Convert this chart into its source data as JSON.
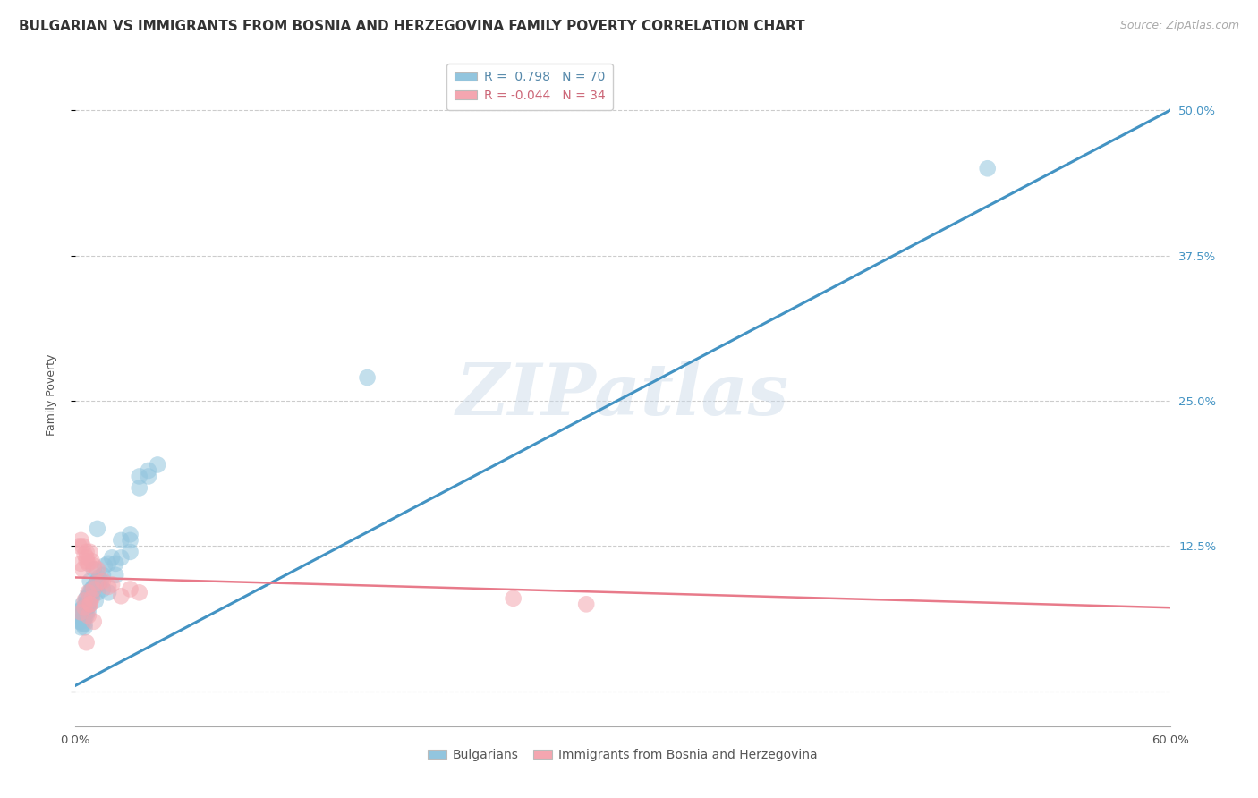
{
  "title": "BULGARIAN VS IMMIGRANTS FROM BOSNIA AND HERZEGOVINA FAMILY POVERTY CORRELATION CHART",
  "source": "Source: ZipAtlas.com",
  "ylabel": "Family Poverty",
  "xlim": [
    0.0,
    0.6
  ],
  "ylim": [
    -0.03,
    0.54
  ],
  "xticks": [
    0.0,
    0.1,
    0.2,
    0.3,
    0.4,
    0.5,
    0.6
  ],
  "xticklabels": [
    "0.0%",
    "",
    "",
    "",
    "",
    "",
    "60.0%"
  ],
  "yticks": [
    0.0,
    0.125,
    0.25,
    0.375,
    0.5
  ],
  "yticklabels": [
    "",
    "12.5%",
    "25.0%",
    "37.5%",
    "50.0%"
  ],
  "grid_color": "#cccccc",
  "background_color": "#ffffff",
  "watermark": "ZIPatlas",
  "blue_color": "#92c5de",
  "pink_color": "#f4a6b0",
  "blue_line_color": "#4393c3",
  "pink_line_color": "#e87a8a",
  "R_blue": 0.798,
  "N_blue": 70,
  "R_pink": -0.044,
  "N_pink": 34,
  "blue_scatter_x": [
    0.002,
    0.003,
    0.003,
    0.003,
    0.004,
    0.004,
    0.004,
    0.004,
    0.005,
    0.005,
    0.005,
    0.005,
    0.005,
    0.006,
    0.006,
    0.006,
    0.006,
    0.006,
    0.007,
    0.007,
    0.007,
    0.007,
    0.007,
    0.008,
    0.008,
    0.008,
    0.008,
    0.009,
    0.009,
    0.009,
    0.01,
    0.01,
    0.01,
    0.011,
    0.011,
    0.012,
    0.012,
    0.013,
    0.013,
    0.014,
    0.015,
    0.015,
    0.016,
    0.018,
    0.018,
    0.02,
    0.022,
    0.022,
    0.025,
    0.025,
    0.03,
    0.03,
    0.03,
    0.035,
    0.035,
    0.04,
    0.04,
    0.045,
    0.012,
    0.009,
    0.006,
    0.005,
    0.004,
    0.007,
    0.003,
    0.008,
    0.006,
    0.004,
    0.5,
    0.16
  ],
  "blue_scatter_y": [
    0.06,
    0.065,
    0.055,
    0.07,
    0.062,
    0.058,
    0.068,
    0.072,
    0.066,
    0.07,
    0.055,
    0.058,
    0.063,
    0.071,
    0.076,
    0.08,
    0.074,
    0.068,
    0.075,
    0.078,
    0.073,
    0.069,
    0.077,
    0.08,
    0.085,
    0.082,
    0.095,
    0.083,
    0.085,
    0.088,
    0.09,
    0.088,
    0.105,
    0.092,
    0.078,
    0.085,
    0.095,
    0.092,
    0.098,
    0.095,
    0.1,
    0.088,
    0.108,
    0.11,
    0.085,
    0.115,
    0.11,
    0.1,
    0.115,
    0.13,
    0.13,
    0.12,
    0.135,
    0.175,
    0.185,
    0.185,
    0.19,
    0.195,
    0.14,
    0.082,
    0.08,
    0.072,
    0.075,
    0.079,
    0.06,
    0.086,
    0.065,
    0.062,
    0.45,
    0.27
  ],
  "pink_scatter_x": [
    0.002,
    0.003,
    0.003,
    0.004,
    0.004,
    0.005,
    0.005,
    0.006,
    0.006,
    0.006,
    0.007,
    0.007,
    0.008,
    0.008,
    0.009,
    0.009,
    0.01,
    0.01,
    0.012,
    0.012,
    0.015,
    0.018,
    0.02,
    0.025,
    0.03,
    0.035,
    0.24,
    0.28,
    0.003,
    0.005,
    0.007,
    0.01,
    0.008,
    0.006
  ],
  "pink_scatter_y": [
    0.125,
    0.13,
    0.11,
    0.125,
    0.105,
    0.118,
    0.078,
    0.115,
    0.112,
    0.12,
    0.11,
    0.085,
    0.12,
    0.075,
    0.112,
    0.08,
    0.108,
    0.088,
    0.105,
    0.093,
    0.095,
    0.09,
    0.092,
    0.082,
    0.088,
    0.085,
    0.08,
    0.075,
    0.068,
    0.072,
    0.065,
    0.06,
    0.075,
    0.042
  ],
  "blue_line_x": [
    0.0,
    0.6
  ],
  "blue_line_y": [
    0.005,
    0.5
  ],
  "pink_line_x": [
    0.0,
    0.6
  ],
  "pink_line_y": [
    0.098,
    0.072
  ],
  "title_fontsize": 11,
  "source_fontsize": 9,
  "axis_fontsize": 9,
  "tick_fontsize": 9.5,
  "legend_fontsize": 10,
  "scatter_size": 180
}
